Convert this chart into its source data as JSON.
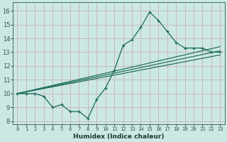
{
  "bg_color": "#cce8e4",
  "grid_color": "#c8b8c0",
  "line_color": "#1a6b5a",
  "xlabel": "Humidex (Indice chaleur)",
  "xlim": [
    -0.5,
    23.5
  ],
  "ylim": [
    7.8,
    16.6
  ],
  "yticks": [
    8,
    9,
    10,
    11,
    12,
    13,
    14,
    15,
    16
  ],
  "xticks": [
    0,
    1,
    2,
    3,
    4,
    5,
    6,
    7,
    8,
    9,
    10,
    11,
    12,
    13,
    14,
    15,
    16,
    17,
    18,
    19,
    20,
    21,
    22,
    23
  ],
  "xtick_labels": [
    "0",
    "1",
    "2",
    "3",
    "4",
    "5",
    "6",
    "7",
    "8",
    "9",
    "10",
    "11",
    "12",
    "13",
    "14",
    "15",
    "16",
    "17",
    "18",
    "19",
    "20",
    "21",
    "22",
    "23"
  ],
  "main_line_x": [
    0,
    1,
    2,
    3,
    4,
    5,
    6,
    7,
    8,
    9,
    10,
    11,
    12,
    13,
    14,
    15,
    16,
    17,
    18,
    19,
    20,
    21,
    22,
    23
  ],
  "main_line_y": [
    10.0,
    10.0,
    10.0,
    9.8,
    9.0,
    9.2,
    8.7,
    8.7,
    8.2,
    9.6,
    10.4,
    11.7,
    13.5,
    13.9,
    14.8,
    15.9,
    15.3,
    14.5,
    13.7,
    13.3,
    13.3,
    13.3,
    13.0,
    13.0
  ],
  "reg_line1_x": [
    0,
    23
  ],
  "reg_line1_y": [
    10.0,
    13.1
  ],
  "reg_line2_x": [
    0,
    23
  ],
  "reg_line2_y": [
    10.0,
    13.4
  ],
  "reg_line3_x": [
    0,
    23
  ],
  "reg_line3_y": [
    10.0,
    12.8
  ],
  "tick_color": "#2a5a52",
  "xlabel_color": "#1a3a32"
}
